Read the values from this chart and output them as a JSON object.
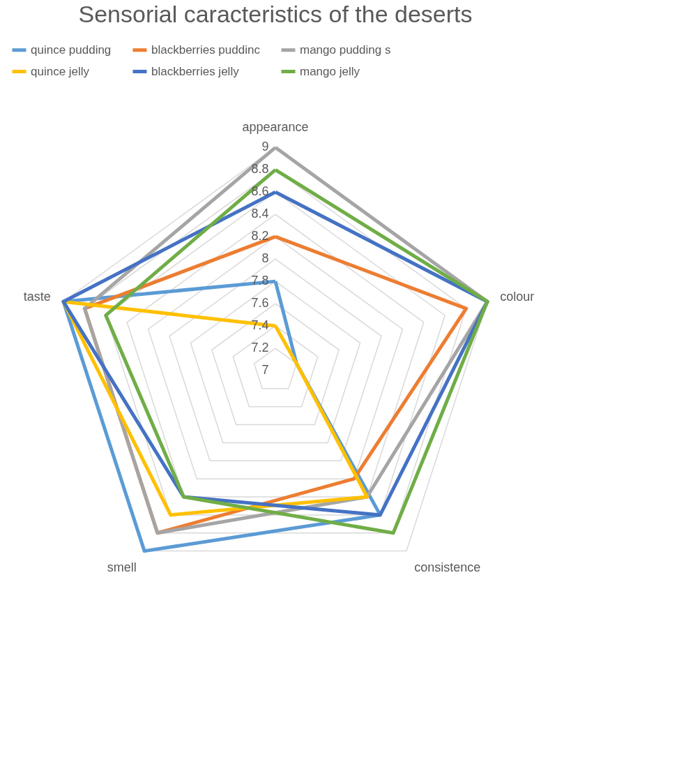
{
  "chart_data": {
    "type": "radar",
    "title": "Sensorial caracteristics of the deserts",
    "categories": [
      "appearance",
      "colour",
      "consistence",
      "smell",
      "taste"
    ],
    "series": [
      {
        "name": "quince pudding",
        "color": "#5b9bd5",
        "values": [
          7.8,
          7.2,
          8.6,
          9,
          9
        ]
      },
      {
        "name": "blackberries puddinc",
        "color": "#ed7d31",
        "values": [
          8.2,
          8.8,
          8.2,
          8.8,
          8.8
        ]
      },
      {
        "name": "mango pudding s",
        "color": "#a5a5a5",
        "values": [
          9,
          9,
          8.4,
          8.8,
          8.8
        ]
      },
      {
        "name": "quince jelly",
        "color": "#ffc000",
        "values": [
          7.4,
          7.2,
          8.4,
          8.6,
          9
        ]
      },
      {
        "name": "blackberries jelly",
        "color": "#4472c4",
        "values": [
          8.6,
          9,
          8.6,
          8.4,
          9
        ]
      },
      {
        "name": "mango jelly",
        "color": "#70ad47",
        "values": [
          8.8,
          9,
          8.8,
          8.4,
          8.6
        ]
      }
    ],
    "ylim": [
      7,
      9
    ],
    "yticks": [
      7,
      7.2,
      7.4,
      7.6,
      7.8,
      8,
      8.2,
      8.4,
      8.6,
      8.8,
      9
    ],
    "grid": true,
    "legend": "top"
  }
}
